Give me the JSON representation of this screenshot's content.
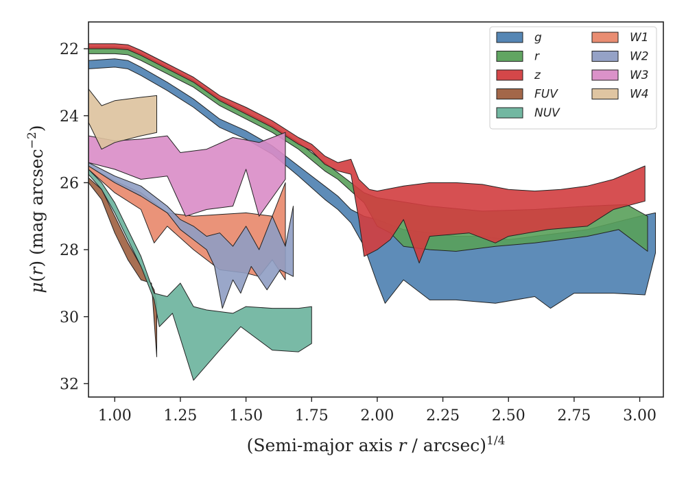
{
  "chart_data": {
    "type": "area",
    "title": "",
    "xlabel": "(Semi-major axis r / arcsec)^1/4",
    "ylabel": "μ(r) (mag arcsec^−2)",
    "xlim": [
      0.9,
      3.09
    ],
    "ylim": [
      32.4,
      21.2
    ],
    "y_inverted": true,
    "grid": false,
    "legend_placement": "top-right",
    "legend_columns": 2,
    "x_ticks": [
      "1.00",
      "1.25",
      "1.50",
      "1.75",
      "2.00",
      "2.25",
      "2.50",
      "2.75",
      "3.00"
    ],
    "x_tick_values": [
      1.0,
      1.25,
      1.5,
      1.75,
      2.0,
      2.25,
      2.5,
      2.75,
      3.0
    ],
    "y_ticks": [
      "22",
      "24",
      "26",
      "28",
      "30",
      "32"
    ],
    "y_tick_values": [
      22,
      24,
      26,
      28,
      30,
      32
    ],
    "series": [
      {
        "name": "g",
        "color": "#4c7fb0",
        "upper": [
          [
            0.9,
            22.35
          ],
          [
            1.0,
            22.3
          ],
          [
            1.05,
            22.35
          ],
          [
            1.1,
            22.55
          ],
          [
            1.2,
            23.0
          ],
          [
            1.3,
            23.5
          ],
          [
            1.4,
            24.1
          ],
          [
            1.5,
            24.45
          ],
          [
            1.6,
            24.9
          ],
          [
            1.7,
            25.5
          ],
          [
            1.8,
            26.1
          ],
          [
            1.85,
            26.4
          ],
          [
            1.9,
            26.8
          ],
          [
            1.95,
            27.0
          ],
          [
            2.0,
            27.1
          ],
          [
            2.1,
            27.4
          ],
          [
            2.2,
            27.5
          ],
          [
            2.3,
            27.6
          ],
          [
            2.4,
            27.6
          ],
          [
            2.5,
            27.7
          ],
          [
            2.6,
            27.6
          ],
          [
            2.7,
            27.5
          ],
          [
            2.8,
            27.4
          ],
          [
            2.9,
            27.2
          ],
          [
            3.0,
            27.0
          ],
          [
            3.06,
            26.9
          ]
        ],
        "lower": [
          [
            0.9,
            22.6
          ],
          [
            1.0,
            22.55
          ],
          [
            1.05,
            22.6
          ],
          [
            1.1,
            22.8
          ],
          [
            1.2,
            23.25
          ],
          [
            1.3,
            23.75
          ],
          [
            1.4,
            24.35
          ],
          [
            1.5,
            24.7
          ],
          [
            1.6,
            25.15
          ],
          [
            1.7,
            25.8
          ],
          [
            1.8,
            26.5
          ],
          [
            1.85,
            26.8
          ],
          [
            1.9,
            27.2
          ],
          [
            1.95,
            27.9
          ],
          [
            2.0,
            29.0
          ],
          [
            2.03,
            29.6
          ],
          [
            2.1,
            28.9
          ],
          [
            2.2,
            29.5
          ],
          [
            2.3,
            29.5
          ],
          [
            2.45,
            29.6
          ],
          [
            2.6,
            29.4
          ],
          [
            2.66,
            29.75
          ],
          [
            2.75,
            29.3
          ],
          [
            2.9,
            29.3
          ],
          [
            3.02,
            29.35
          ],
          [
            3.06,
            28.1
          ]
        ]
      },
      {
        "name": "r",
        "color": "#59a05a",
        "upper": [
          [
            0.9,
            21.95
          ],
          [
            1.0,
            21.95
          ],
          [
            1.05,
            21.98
          ],
          [
            1.1,
            22.15
          ],
          [
            1.2,
            22.55
          ],
          [
            1.3,
            22.95
          ],
          [
            1.4,
            23.5
          ],
          [
            1.5,
            23.9
          ],
          [
            1.6,
            24.3
          ],
          [
            1.7,
            24.8
          ],
          [
            1.8,
            25.4
          ],
          [
            1.85,
            25.7
          ],
          [
            1.9,
            26.0
          ],
          [
            1.95,
            26.3
          ],
          [
            2.0,
            26.45
          ],
          [
            2.2,
            26.7
          ],
          [
            2.4,
            26.85
          ],
          [
            2.6,
            26.8
          ],
          [
            2.8,
            26.7
          ],
          [
            2.95,
            26.65
          ],
          [
            3.03,
            27.0
          ]
        ],
        "lower": [
          [
            0.9,
            22.15
          ],
          [
            1.0,
            22.15
          ],
          [
            1.05,
            22.18
          ],
          [
            1.1,
            22.35
          ],
          [
            1.2,
            22.75
          ],
          [
            1.3,
            23.15
          ],
          [
            1.4,
            23.7
          ],
          [
            1.5,
            24.1
          ],
          [
            1.6,
            24.5
          ],
          [
            1.7,
            25.0
          ],
          [
            1.8,
            25.65
          ],
          [
            1.85,
            25.9
          ],
          [
            1.9,
            26.25
          ],
          [
            1.95,
            26.6
          ],
          [
            2.0,
            27.3
          ],
          [
            2.05,
            27.5
          ],
          [
            2.1,
            27.9
          ],
          [
            2.2,
            28.0
          ],
          [
            2.3,
            28.05
          ],
          [
            2.45,
            27.9
          ],
          [
            2.6,
            27.8
          ],
          [
            2.8,
            27.6
          ],
          [
            2.92,
            27.4
          ],
          [
            3.03,
            28.05
          ]
        ]
      },
      {
        "name": "z",
        "color": "#d23d3f",
        "upper": [
          [
            0.9,
            21.85
          ],
          [
            1.0,
            21.85
          ],
          [
            1.05,
            21.88
          ],
          [
            1.1,
            22.05
          ],
          [
            1.2,
            22.45
          ],
          [
            1.3,
            22.85
          ],
          [
            1.4,
            23.4
          ],
          [
            1.5,
            23.75
          ],
          [
            1.6,
            24.15
          ],
          [
            1.7,
            24.65
          ],
          [
            1.75,
            24.85
          ],
          [
            1.8,
            25.2
          ],
          [
            1.85,
            25.4
          ],
          [
            1.9,
            25.3
          ],
          [
            1.93,
            25.9
          ],
          [
            1.97,
            26.2
          ],
          [
            2.0,
            26.25
          ],
          [
            2.1,
            26.1
          ],
          [
            2.2,
            26.0
          ],
          [
            2.3,
            26.0
          ],
          [
            2.4,
            26.05
          ],
          [
            2.5,
            26.2
          ],
          [
            2.6,
            26.25
          ],
          [
            2.7,
            26.2
          ],
          [
            2.8,
            26.1
          ],
          [
            2.9,
            25.9
          ],
          [
            3.02,
            25.5
          ]
        ],
        "lower": [
          [
            0.9,
            22.0
          ],
          [
            1.0,
            22.0
          ],
          [
            1.05,
            22.03
          ],
          [
            1.1,
            22.2
          ],
          [
            1.2,
            22.6
          ],
          [
            1.3,
            23.0
          ],
          [
            1.4,
            23.55
          ],
          [
            1.5,
            23.95
          ],
          [
            1.6,
            24.35
          ],
          [
            1.7,
            24.85
          ],
          [
            1.75,
            25.05
          ],
          [
            1.8,
            25.45
          ],
          [
            1.85,
            25.65
          ],
          [
            1.9,
            25.75
          ],
          [
            1.93,
            27.1
          ],
          [
            1.95,
            28.2
          ],
          [
            2.0,
            28.0
          ],
          [
            2.05,
            27.7
          ],
          [
            2.1,
            27.1
          ],
          [
            2.16,
            28.4
          ],
          [
            2.2,
            27.6
          ],
          [
            2.35,
            27.5
          ],
          [
            2.45,
            27.8
          ],
          [
            2.5,
            27.6
          ],
          [
            2.65,
            27.4
          ],
          [
            2.8,
            27.3
          ],
          [
            2.9,
            26.8
          ],
          [
            3.02,
            26.55
          ]
        ]
      },
      {
        "name": "FUV",
        "color": "#9e5f3f",
        "upper": [
          [
            0.9,
            25.85
          ],
          [
            0.95,
            26.2
          ],
          [
            1.0,
            27.0
          ],
          [
            1.05,
            27.8
          ],
          [
            1.1,
            28.5
          ],
          [
            1.15,
            29.2
          ],
          [
            1.16,
            29.6
          ]
        ],
        "lower": [
          [
            0.9,
            26.0
          ],
          [
            0.95,
            26.5
          ],
          [
            1.0,
            27.5
          ],
          [
            1.05,
            28.3
          ],
          [
            1.1,
            28.9
          ],
          [
            1.14,
            29.0
          ],
          [
            1.16,
            31.2
          ]
        ]
      },
      {
        "name": "NUV",
        "color": "#6ab39c",
        "upper": [
          [
            0.9,
            25.6
          ],
          [
            0.95,
            26.0
          ],
          [
            1.0,
            26.6
          ],
          [
            1.05,
            27.4
          ],
          [
            1.1,
            28.2
          ],
          [
            1.15,
            29.3
          ],
          [
            1.2,
            29.4
          ],
          [
            1.25,
            29.0
          ],
          [
            1.3,
            29.7
          ],
          [
            1.35,
            29.8
          ],
          [
            1.45,
            29.9
          ],
          [
            1.5,
            29.7
          ],
          [
            1.6,
            29.75
          ],
          [
            1.7,
            29.75
          ],
          [
            1.75,
            29.7
          ]
        ],
        "lower": [
          [
            0.9,
            25.75
          ],
          [
            0.95,
            26.2
          ],
          [
            1.0,
            26.9
          ],
          [
            1.05,
            27.7
          ],
          [
            1.1,
            28.5
          ],
          [
            1.15,
            29.5
          ],
          [
            1.17,
            30.3
          ],
          [
            1.22,
            29.9
          ],
          [
            1.3,
            31.9
          ],
          [
            1.4,
            31.0
          ],
          [
            1.48,
            30.3
          ],
          [
            1.6,
            31.0
          ],
          [
            1.7,
            31.05
          ],
          [
            1.75,
            30.8
          ]
        ]
      },
      {
        "name": "W1",
        "color": "#e8876a",
        "upper": [
          [
            0.9,
            25.5
          ],
          [
            1.0,
            25.95
          ],
          [
            1.1,
            26.3
          ],
          [
            1.2,
            26.9
          ],
          [
            1.3,
            27.0
          ],
          [
            1.4,
            26.95
          ],
          [
            1.5,
            26.9
          ],
          [
            1.6,
            27.0
          ],
          [
            1.65,
            26.0
          ]
        ],
        "lower": [
          [
            0.9,
            25.6
          ],
          [
            1.0,
            26.3
          ],
          [
            1.1,
            26.8
          ],
          [
            1.15,
            27.8
          ],
          [
            1.2,
            27.3
          ],
          [
            1.3,
            28.0
          ],
          [
            1.4,
            28.6
          ],
          [
            1.5,
            28.7
          ],
          [
            1.55,
            28.8
          ],
          [
            1.6,
            28.3
          ],
          [
            1.65,
            28.9
          ]
        ]
      },
      {
        "name": "W2",
        "color": "#8f9dc3",
        "upper": [
          [
            0.9,
            25.4
          ],
          [
            1.0,
            25.8
          ],
          [
            1.1,
            26.1
          ],
          [
            1.2,
            26.7
          ],
          [
            1.25,
            27.1
          ],
          [
            1.3,
            27.3
          ],
          [
            1.35,
            27.6
          ],
          [
            1.4,
            27.5
          ],
          [
            1.45,
            27.9
          ],
          [
            1.5,
            27.3
          ],
          [
            1.55,
            28.0
          ],
          [
            1.6,
            27.0
          ],
          [
            1.65,
            27.9
          ],
          [
            1.68,
            26.7
          ]
        ],
        "lower": [
          [
            0.9,
            25.5
          ],
          [
            1.0,
            26.0
          ],
          [
            1.1,
            26.4
          ],
          [
            1.2,
            26.9
          ],
          [
            1.25,
            27.4
          ],
          [
            1.3,
            27.7
          ],
          [
            1.35,
            28.0
          ],
          [
            1.38,
            28.5
          ],
          [
            1.41,
            29.75
          ],
          [
            1.45,
            28.9
          ],
          [
            1.48,
            29.3
          ],
          [
            1.52,
            28.5
          ],
          [
            1.58,
            29.2
          ],
          [
            1.63,
            28.6
          ],
          [
            1.68,
            28.8
          ]
        ]
      },
      {
        "name": "W3",
        "color": "#d98cc6",
        "upper": [
          [
            0.9,
            24.6
          ],
          [
            1.0,
            24.75
          ],
          [
            1.1,
            24.7
          ],
          [
            1.2,
            24.6
          ],
          [
            1.25,
            25.1
          ],
          [
            1.35,
            25.0
          ],
          [
            1.45,
            24.65
          ],
          [
            1.55,
            24.8
          ],
          [
            1.65,
            24.5
          ]
        ],
        "lower": [
          [
            0.9,
            25.4
          ],
          [
            1.0,
            25.6
          ],
          [
            1.1,
            25.9
          ],
          [
            1.2,
            25.8
          ],
          [
            1.27,
            27.0
          ],
          [
            1.35,
            26.8
          ],
          [
            1.45,
            26.7
          ],
          [
            1.5,
            25.6
          ],
          [
            1.55,
            27.0
          ],
          [
            1.65,
            25.9
          ]
        ]
      },
      {
        "name": "W4",
        "color": "#ddc29d",
        "upper": [
          [
            0.9,
            23.2
          ],
          [
            0.95,
            23.7
          ],
          [
            1.0,
            23.55
          ],
          [
            1.1,
            23.45
          ],
          [
            1.16,
            23.4
          ]
        ],
        "lower": [
          [
            0.9,
            24.2
          ],
          [
            0.95,
            25.0
          ],
          [
            1.0,
            24.8
          ],
          [
            1.1,
            24.6
          ],
          [
            1.16,
            24.5
          ]
        ]
      }
    ]
  }
}
